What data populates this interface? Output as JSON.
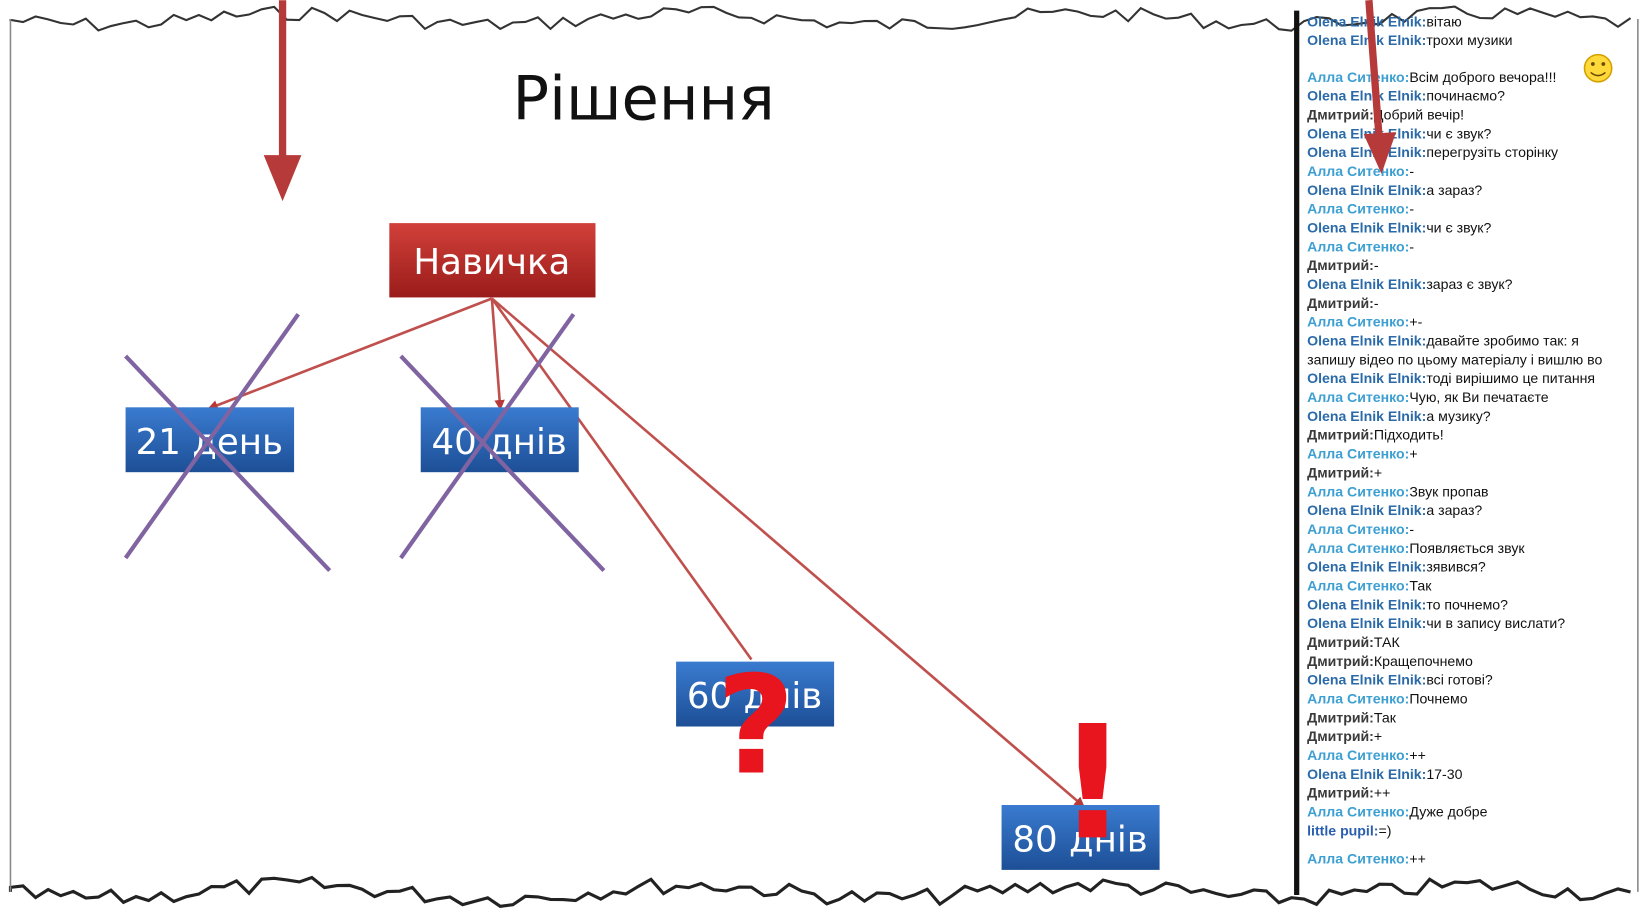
{
  "slide": {
    "title": "Рішення",
    "root": "Навичка",
    "nodes": [
      "21 день",
      "40 днів",
      "60 днів",
      "80 днів"
    ],
    "marks": [
      "?",
      "!"
    ]
  },
  "chat": {
    "messages": [
      {
        "name": "Olena Elnik Elnik:",
        "text": "вітаю",
        "color": "#2a6aa8"
      },
      {
        "name": "Olena Elnik Elnik:",
        "text": "трохи музики",
        "color": "#2a6aa8"
      },
      {
        "name": "Алла Ситенко:",
        "text": "Всім доброго вечора!!!",
        "color": "#3d9fd2"
      },
      {
        "name": "Olena Elnik Elnik:",
        "text": "починаємо?",
        "color": "#2a6aa8"
      },
      {
        "name": "Дмитрий:",
        "text": "Добрий вечір!",
        "color": "#3a3a3a"
      },
      {
        "name": "Olena Elnik Elnik:",
        "text": "чи є звук?",
        "color": "#2a6aa8"
      },
      {
        "name": "Olena Elnik Elnik:",
        "text": "перегрузіть сторінку",
        "color": "#2a6aa8"
      },
      {
        "name": "Алла Ситенко:",
        "text": "-",
        "color": "#3d9fd2"
      },
      {
        "name": "Olena Elnik Elnik:",
        "text": "а зараз?",
        "color": "#2a6aa8"
      },
      {
        "name": "Алла Ситенко:",
        "text": "-",
        "color": "#3d9fd2"
      },
      {
        "name": "Olena Elnik Elnik:",
        "text": "чи є звук?",
        "color": "#2a6aa8"
      },
      {
        "name": "Алла Ситенко:",
        "text": "-",
        "color": "#3d9fd2"
      },
      {
        "name": "Дмитрий:",
        "text": "-",
        "color": "#3a3a3a"
      },
      {
        "name": "Olena Elnik Elnik:",
        "text": "зараз є звук?",
        "color": "#2a6aa8"
      },
      {
        "name": "Дмитрий:",
        "text": "-",
        "color": "#3a3a3a"
      },
      {
        "name": "Алла Ситенко:",
        "text": "+-",
        "color": "#3d9fd2"
      },
      {
        "name": "Olena Elnik Elnik:",
        "text": "давайте зробимо так: я",
        "text_cont": "запишу відео по цьому матеріалу і вишлю во",
        "color": "#2a6aa8"
      },
      {
        "name": "Olena Elnik Elnik:",
        "text": "тоді вирішимо це питання",
        "color": "#2a6aa8"
      },
      {
        "name": "Алла Ситенко:",
        "text": "Чую, як Ви печатаєте",
        "color": "#3d9fd2"
      },
      {
        "name": "Olena Elnik Elnik:",
        "text": "а музику?",
        "color": "#2a6aa8"
      },
      {
        "name": "Дмитрий:",
        "text": "Підходить!",
        "color": "#3a3a3a"
      },
      {
        "name": "Алла Ситенко:",
        "text": "+",
        "color": "#3d9fd2"
      },
      {
        "name": "Дмитрий:",
        "text": "+",
        "color": "#3a3a3a"
      },
      {
        "name": "Алла Ситенко:",
        "text": "Звук пропав",
        "color": "#3d9fd2"
      },
      {
        "name": "Olena Elnik Elnik:",
        "text": "а зараз?",
        "color": "#2a6aa8"
      },
      {
        "name": "Алла Ситенко:",
        "text": "-",
        "color": "#3d9fd2"
      },
      {
        "name": "Алла Ситенко:",
        "text": "Появляється звук",
        "color": "#3d9fd2"
      },
      {
        "name": "Olena Elnik Elnik:",
        "text": "зявився?",
        "color": "#2a6aa8"
      },
      {
        "name": "Алла Ситенко:",
        "text": "Так",
        "color": "#3d9fd2"
      },
      {
        "name": "Olena Elnik Elnik:",
        "text": "то почнемо?",
        "color": "#2a6aa8"
      },
      {
        "name": "Olena Elnik Elnik:",
        "text": "чи в запису вислати?",
        "color": "#2a6aa8"
      },
      {
        "name": "Дмитрий:",
        "text": "ТАК",
        "color": "#3a3a3a"
      },
      {
        "name": "Дмитрий:",
        "text": "Кращепочнемо",
        "color": "#3a3a3a"
      },
      {
        "name": "Olena Elnik Elnik:",
        "text": "всі готові?",
        "color": "#2a6aa8"
      },
      {
        "name": "Алла Ситенко:",
        "text": "Почнемо",
        "color": "#3d9fd2"
      },
      {
        "name": "Дмитрий:",
        "text": "Так",
        "color": "#3a3a3a"
      },
      {
        "name": "Дмитрий:",
        "text": "+",
        "color": "#3a3a3a"
      },
      {
        "name": "Алла Ситенко:",
        "text": "++",
        "color": "#3d9fd2"
      },
      {
        "name": "Olena Elnik Elnik:",
        "text": "17-30",
        "color": "#2a6aa8"
      },
      {
        "name": "Дмитрий:",
        "text": "++",
        "color": "#3a3a3a"
      },
      {
        "name": "Алла Ситенко:",
        "text": "Дуже добре",
        "color": "#3d9fd2"
      },
      {
        "name": "little pupil:",
        "text": "=)",
        "color": "#2a5fb0"
      },
      {
        "name": "Алла Ситенко:",
        "text": "++",
        "color": "#3d9fd2"
      }
    ]
  }
}
